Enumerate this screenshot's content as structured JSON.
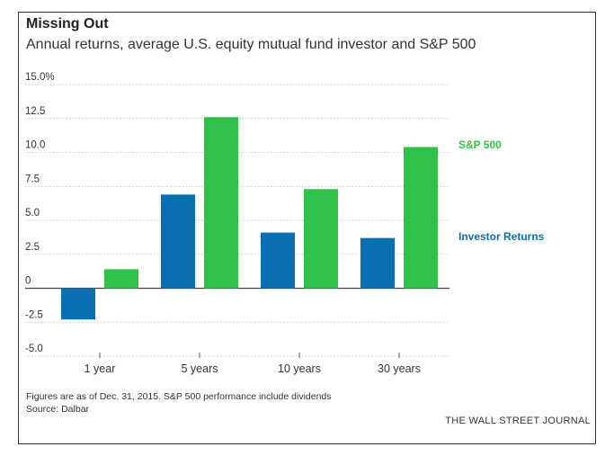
{
  "header": {
    "title": "Missing Out",
    "subtitle": "Annual returns, average U.S. equity mutual fund investor and S&P 500"
  },
  "footer": {
    "note": "Figures are as of Dec. 31, 2015. S&P 500 performance include dividends",
    "source": "Source: Dalbar",
    "brand": "THE WALL STREET JOURNAL"
  },
  "colors": {
    "investor": "#0a6fb0",
    "sp500": "#2fc14a"
  },
  "chart_data": {
    "type": "bar",
    "categories": [
      "1 year",
      "5 years",
      "10 years",
      "30 years"
    ],
    "series": [
      {
        "name": "Investor Returns",
        "values": [
          -2.3,
          6.9,
          4.1,
          3.7
        ]
      },
      {
        "name": "S&P 500",
        "values": [
          1.4,
          12.6,
          7.3,
          10.4
        ]
      }
    ],
    "ylim": [
      -5.0,
      15.0
    ],
    "yticks": [
      15.0,
      12.5,
      10.0,
      7.5,
      5.0,
      2.5,
      0,
      -2.5,
      -5.0
    ],
    "ytick_labels": [
      "15.0%",
      "12.5",
      "10.0",
      "7.5",
      "5.0",
      "2.5",
      "0",
      "-2.5",
      "-5.0"
    ],
    "grid": true,
    "legend": "right, direct labels"
  }
}
